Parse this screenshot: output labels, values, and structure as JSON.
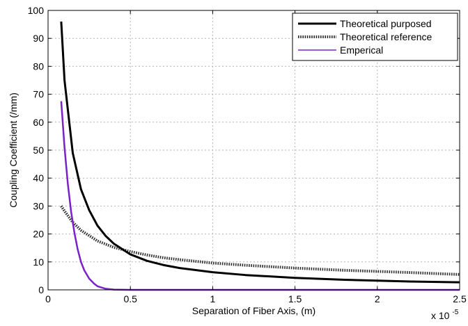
{
  "chart_data": {
    "type": "line",
    "xlabel": "Separation of Fiber Axis, (m)",
    "ylabel": "Coupling Coefficient (/mm)",
    "x_multiplier_label": "x 10",
    "x_multiplier_exponent": "-5",
    "xlim": [
      0,
      2.5
    ],
    "ylim": [
      0,
      100
    ],
    "x_ticks": [
      "0",
      "0.5",
      "1",
      "1.5",
      "2",
      "2.5"
    ],
    "y_ticks": [
      "0",
      "10",
      "20",
      "30",
      "40",
      "50",
      "60",
      "70",
      "80",
      "90",
      "100"
    ],
    "grid": true,
    "legend_position": "top-right",
    "series": [
      {
        "name": "Theoretical purposed",
        "color": "#000000",
        "style": "solid-thick",
        "x": [
          0.08,
          0.1,
          0.15,
          0.2,
          0.25,
          0.3,
          0.35,
          0.4,
          0.5,
          0.6,
          0.7,
          0.8,
          1.0,
          1.2,
          1.5,
          1.8,
          2.0,
          2.2,
          2.5
        ],
        "y": [
          96,
          75,
          49,
          36,
          28.5,
          23,
          19.3,
          16.5,
          12.7,
          10.4,
          8.9,
          7.8,
          6.3,
          5.3,
          4.3,
          3.6,
          3.3,
          3.0,
          2.7
        ]
      },
      {
        "name": "Theoretical reference",
        "color": "#303030",
        "style": "dotted-thick",
        "x": [
          0.08,
          0.1,
          0.15,
          0.2,
          0.3,
          0.4,
          0.5,
          0.6,
          0.7,
          0.8,
          1.0,
          1.2,
          1.5,
          1.8,
          2.0,
          2.2,
          2.5
        ],
        "y": [
          30,
          28.2,
          24.2,
          21.3,
          17.5,
          15.2,
          13.7,
          12.5,
          11.5,
          10.8,
          9.6,
          8.8,
          7.8,
          7.0,
          6.6,
          6.2,
          5.5
        ]
      },
      {
        "name": "Emperical",
        "color": "#7a22c8",
        "style": "solid",
        "x": [
          0.08,
          0.1,
          0.12,
          0.14,
          0.16,
          0.18,
          0.2,
          0.22,
          0.25,
          0.28,
          0.3,
          0.35,
          0.4,
          0.5,
          1.0,
          1.5,
          2.0,
          2.5
        ],
        "y": [
          67.5,
          51,
          38,
          28,
          20.5,
          14.5,
          10,
          7,
          4,
          2.2,
          1.3,
          0.4,
          0.1,
          0,
          0,
          0,
          0,
          0
        ]
      }
    ]
  }
}
